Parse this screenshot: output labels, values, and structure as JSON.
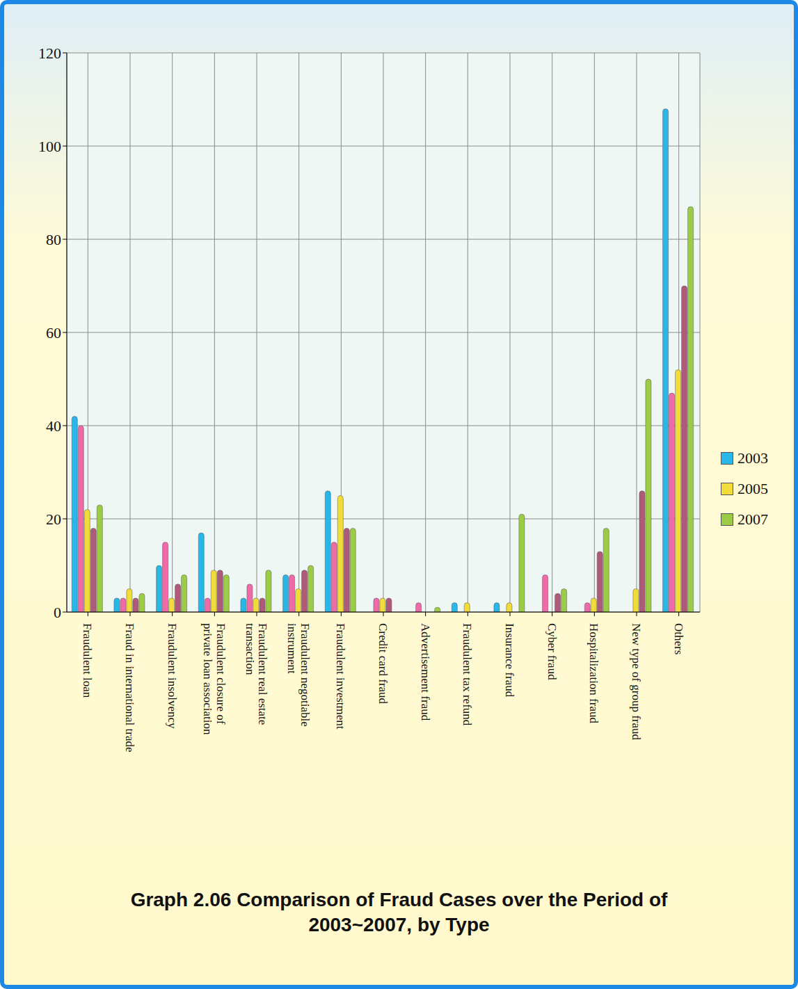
{
  "chart_data": {
    "type": "bar",
    "title": "Graph 2.06 Comparison of Fraud Cases over the Period of 2003~2007, by Type",
    "categories": [
      "Fraudulent loan",
      "Fraud in international trade",
      "Fraudulent insolvency",
      "Fraudulent closure of private loan association",
      "Fraudulent real estate transaction",
      "Fraudulent negotiable instrument",
      "Fraudulent investment",
      "Credit card fraud",
      "Advertisement fraud",
      "Fraudulent tax refund",
      "Insurance fraud",
      "Cyber fraud",
      "Hospitalization  fraud",
      "New type of group fraud",
      "Others"
    ],
    "series": [
      {
        "name": "2003",
        "color": "#29b6e8",
        "values": [
          42,
          3,
          10,
          17,
          3,
          8,
          26,
          0,
          0,
          2,
          2,
          0,
          0,
          0,
          108
        ]
      },
      {
        "name": null,
        "color": "#f06aa8",
        "values": [
          40,
          3,
          15,
          3,
          6,
          8,
          15,
          3,
          2,
          0,
          0,
          8,
          2,
          0,
          47
        ]
      },
      {
        "name": "2005",
        "color": "#f2dc3a",
        "values": [
          22,
          5,
          3,
          9,
          3,
          5,
          25,
          3,
          0,
          2,
          2,
          0,
          3,
          5,
          52
        ]
      },
      {
        "name": null,
        "color": "#b05a7a",
        "values": [
          18,
          3,
          6,
          9,
          3,
          9,
          18,
          3,
          0,
          0,
          0,
          4,
          13,
          26,
          70
        ]
      },
      {
        "name": "2007",
        "color": "#9ccc45",
        "values": [
          23,
          4,
          8,
          8,
          9,
          10,
          18,
          0,
          1,
          0,
          21,
          5,
          18,
          50,
          87
        ]
      }
    ],
    "ylim": [
      0,
      120
    ],
    "yticks": [
      0,
      20,
      40,
      60,
      80,
      100,
      120
    ],
    "grid": true,
    "legend": "right"
  }
}
